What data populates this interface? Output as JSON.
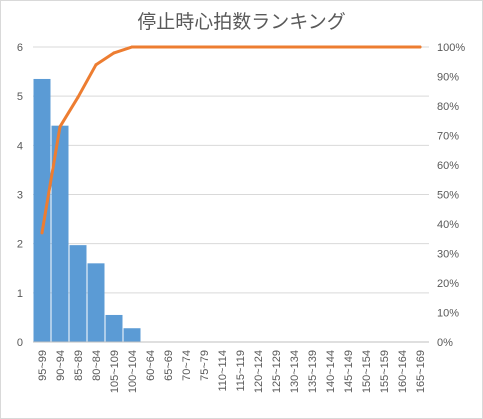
{
  "chart_data": {
    "type": "bar",
    "title": "停止時心拍数ランキング",
    "categories": [
      "95~99",
      "90~94",
      "85~89",
      "80~84",
      "105~109",
      "100~104",
      "60~64",
      "65~69",
      "70~74",
      "75~79",
      "110~114",
      "115~119",
      "120~124",
      "125~129",
      "130~134",
      "135~139",
      "140~144",
      "145~149",
      "150~154",
      "155~159",
      "160~164",
      "165~169"
    ],
    "series": [
      {
        "values": [
          5.35,
          4.4,
          1.97,
          1.6,
          0.55,
          0.28,
          0,
          0,
          0,
          0,
          0,
          0,
          0,
          0,
          0,
          0,
          0,
          0,
          0,
          0,
          0,
          0
        ],
        "color": "#5b9bd5",
        "kind": "bar",
        "axis": "left"
      },
      {
        "values": [
          0.37,
          0.73,
          0.83,
          0.94,
          0.98,
          1.0,
          1.0,
          1.0,
          1.0,
          1.0,
          1.0,
          1.0,
          1.0,
          1.0,
          1.0,
          1.0,
          1.0,
          1.0,
          1.0,
          1.0,
          1.0,
          1.0
        ],
        "color": "#ed7d31",
        "kind": "line",
        "axis": "right"
      }
    ],
    "ylim": [
      0,
      6
    ],
    "yticks": [
      "0",
      "1",
      "2",
      "3",
      "4",
      "5",
      "6"
    ],
    "y2lim": [
      0,
      1
    ],
    "y2ticks": [
      "0%",
      "10%",
      "20%",
      "30%",
      "40%",
      "50%",
      "60%",
      "70%",
      "80%",
      "90%",
      "100%"
    ],
    "grid": true,
    "legend": "none"
  }
}
